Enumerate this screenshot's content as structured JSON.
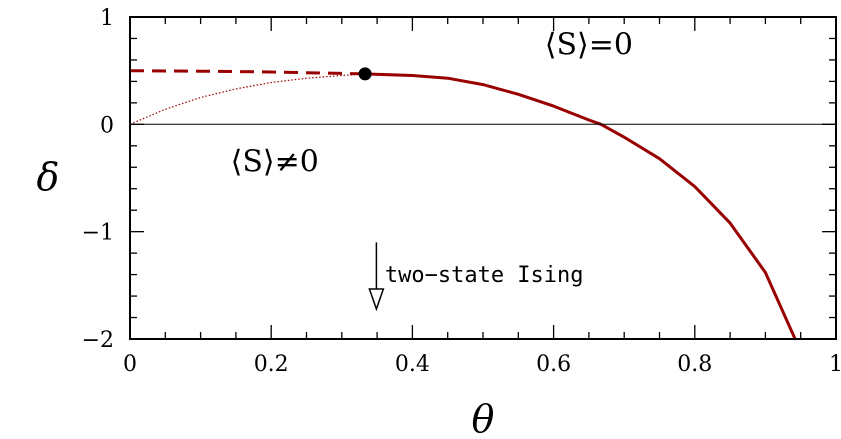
{
  "chart_data": {
    "type": "line",
    "title": "",
    "xlabel": "θ",
    "ylabel": "δ",
    "xlim": [
      0,
      1
    ],
    "ylim": [
      -2,
      1
    ],
    "x_ticks": [
      0,
      0.2,
      0.4,
      0.6,
      0.8,
      1
    ],
    "x_tick_labels": [
      "0",
      "0.2",
      "0.4",
      "0.6",
      "0.8",
      "1"
    ],
    "y_ticks": [
      -2,
      -1,
      0,
      1
    ],
    "y_tick_labels": [
      "−2",
      "−1",
      "0",
      "1"
    ],
    "grid": false,
    "series": [
      {
        "style": "solid",
        "color": "#990000",
        "points": [
          [
            0.333,
            0.47
          ],
          [
            0.4,
            0.455
          ],
          [
            0.45,
            0.43
          ],
          [
            0.5,
            0.37
          ],
          [
            0.55,
            0.28
          ],
          [
            0.6,
            0.17
          ],
          [
            0.65,
            0.04
          ],
          [
            0.667,
            0.0
          ],
          [
            0.7,
            -0.12
          ],
          [
            0.75,
            -0.32
          ],
          [
            0.8,
            -0.58
          ],
          [
            0.85,
            -0.92
          ],
          [
            0.9,
            -1.38
          ],
          [
            0.942,
            -2.0
          ]
        ]
      },
      {
        "style": "dashed",
        "color": "#990000",
        "points": [
          [
            0.0,
            0.5
          ],
          [
            0.1,
            0.495
          ],
          [
            0.2,
            0.488
          ],
          [
            0.333,
            0.47
          ]
        ]
      },
      {
        "style": "dotted",
        "color": "#990000",
        "points": [
          [
            0.0,
            0.0
          ],
          [
            0.05,
            0.14
          ],
          [
            0.1,
            0.25
          ],
          [
            0.15,
            0.33
          ],
          [
            0.2,
            0.39
          ],
          [
            0.25,
            0.43
          ],
          [
            0.3,
            0.455
          ],
          [
            0.333,
            0.47
          ]
        ]
      },
      {
        "style": "thin-solid",
        "color": "#000000",
        "points": [
          [
            0.0,
            0.0
          ],
          [
            1.0,
            0.0
          ]
        ]
      }
    ],
    "marker": {
      "x": 0.333,
      "y": 0.47,
      "color": "#000000"
    },
    "annotations": [
      {
        "text": "⟨S⟩=0",
        "x": 0.65,
        "y": 0.65
      },
      {
        "text": "⟨S⟩≠0",
        "x": 0.205,
        "y": -0.44
      },
      {
        "text": "two−state Ising",
        "x": 0.361,
        "y": -1.47
      }
    ],
    "arrow": {
      "x": 0.349,
      "y_start": -1.1,
      "y_end": -1.72
    }
  }
}
